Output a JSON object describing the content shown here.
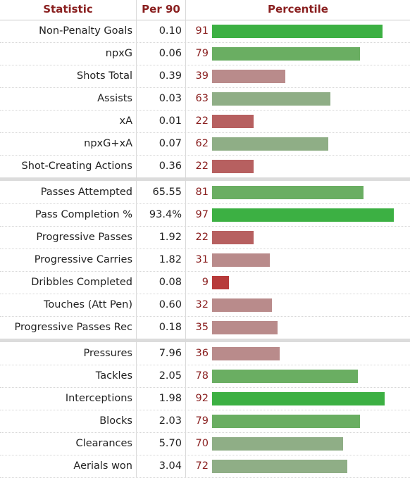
{
  "headers": {
    "statistic": "Statistic",
    "per90": "Per 90",
    "percentile": "Percentile"
  },
  "colors": {
    "high": "#3cb043",
    "mid_high": "#6aae62",
    "mid": "#8fae86",
    "mid_low": "#b98b8b",
    "low": "#b76060",
    "very_low": "#b73a3a",
    "header_text": "#8a2020"
  },
  "chart_data": {
    "type": "bar",
    "orientation": "horizontal",
    "xlim": [
      0,
      100
    ],
    "groups": [
      {
        "rows": [
          {
            "statistic": "Non-Penalty Goals",
            "per90": "0.10",
            "percentile": 91
          },
          {
            "statistic": "npxG",
            "per90": "0.06",
            "percentile": 79
          },
          {
            "statistic": "Shots Total",
            "per90": "0.39",
            "percentile": 39
          },
          {
            "statistic": "Assists",
            "per90": "0.03",
            "percentile": 63
          },
          {
            "statistic": "xA",
            "per90": "0.01",
            "percentile": 22
          },
          {
            "statistic": "npxG+xA",
            "per90": "0.07",
            "percentile": 62
          },
          {
            "statistic": "Shot-Creating Actions",
            "per90": "0.36",
            "percentile": 22
          }
        ]
      },
      {
        "rows": [
          {
            "statistic": "Passes Attempted",
            "per90": "65.55",
            "percentile": 81
          },
          {
            "statistic": "Pass Completion %",
            "per90": "93.4%",
            "percentile": 97
          },
          {
            "statistic": "Progressive Passes",
            "per90": "1.92",
            "percentile": 22
          },
          {
            "statistic": "Progressive Carries",
            "per90": "1.82",
            "percentile": 31
          },
          {
            "statistic": "Dribbles Completed",
            "per90": "0.08",
            "percentile": 9
          },
          {
            "statistic": "Touches (Att Pen)",
            "per90": "0.60",
            "percentile": 32
          },
          {
            "statistic": "Progressive Passes Rec",
            "per90": "0.18",
            "percentile": 35
          }
        ]
      },
      {
        "rows": [
          {
            "statistic": "Pressures",
            "per90": "7.96",
            "percentile": 36
          },
          {
            "statistic": "Tackles",
            "per90": "2.05",
            "percentile": 78
          },
          {
            "statistic": "Interceptions",
            "per90": "1.98",
            "percentile": 92
          },
          {
            "statistic": "Blocks",
            "per90": "2.03",
            "percentile": 79
          },
          {
            "statistic": "Clearances",
            "per90": "5.70",
            "percentile": 70
          },
          {
            "statistic": "Aerials won",
            "per90": "3.04",
            "percentile": 72
          }
        ]
      }
    ]
  }
}
